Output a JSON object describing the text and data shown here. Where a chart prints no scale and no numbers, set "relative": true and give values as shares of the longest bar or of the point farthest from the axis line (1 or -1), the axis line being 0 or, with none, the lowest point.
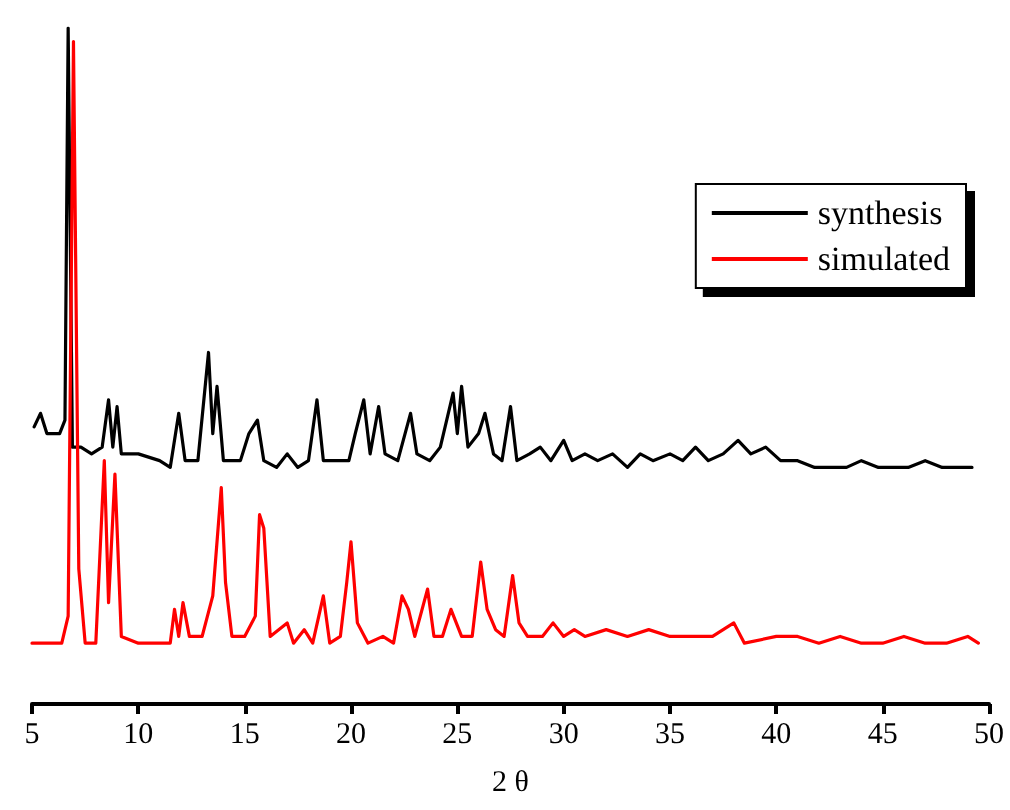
{
  "chart_data": {
    "type": "line",
    "relative": true,
    "xlabel": "2 θ",
    "xlim": [
      5,
      50
    ],
    "xticks": [
      5,
      10,
      15,
      20,
      25,
      30,
      35,
      40,
      45,
      50
    ],
    "tick_labels": "x",
    "grid": false,
    "legend": "top right",
    "marker": "none",
    "line_style": "solid",
    "series": [
      {
        "name": "synthesis",
        "color": "#000000",
        "x": [
          5.1,
          5.4,
          5.7,
          6.3,
          6.55,
          6.7,
          6.9,
          7.3,
          7.8,
          8.3,
          8.6,
          8.8,
          9.0,
          9.2,
          10.0,
          11.0,
          11.5,
          11.9,
          12.2,
          12.8,
          13.3,
          13.5,
          13.7,
          14.0,
          14.8,
          15.2,
          15.6,
          15.9,
          16.5,
          17.0,
          17.5,
          18.0,
          18.4,
          18.7,
          19.3,
          19.9,
          20.2,
          20.6,
          20.9,
          21.3,
          21.6,
          22.2,
          22.8,
          23.1,
          23.7,
          24.2,
          24.8,
          25.0,
          25.2,
          25.5,
          26.0,
          26.3,
          26.7,
          27.1,
          27.5,
          27.8,
          28.4,
          28.9,
          29.4,
          30.0,
          30.4,
          31.0,
          31.6,
          32.3,
          33.0,
          33.6,
          34.2,
          35.0,
          35.6,
          36.2,
          36.8,
          37.5,
          38.2,
          38.8,
          39.5,
          40.2,
          41.0,
          41.8,
          42.5,
          43.3,
          44.0,
          44.8,
          45.5,
          46.2,
          47.0,
          47.8,
          48.5,
          49.2
        ],
        "values": [
          0.41,
          0.43,
          0.4,
          0.4,
          0.42,
          1.0,
          0.38,
          0.38,
          0.37,
          0.38,
          0.45,
          0.38,
          0.44,
          0.37,
          0.37,
          0.36,
          0.35,
          0.43,
          0.36,
          0.36,
          0.52,
          0.4,
          0.47,
          0.36,
          0.36,
          0.4,
          0.42,
          0.36,
          0.35,
          0.37,
          0.35,
          0.36,
          0.45,
          0.36,
          0.36,
          0.36,
          0.4,
          0.45,
          0.37,
          0.44,
          0.37,
          0.36,
          0.43,
          0.37,
          0.36,
          0.38,
          0.46,
          0.4,
          0.47,
          0.38,
          0.4,
          0.43,
          0.37,
          0.36,
          0.44,
          0.36,
          0.37,
          0.38,
          0.36,
          0.39,
          0.36,
          0.37,
          0.36,
          0.37,
          0.35,
          0.37,
          0.36,
          0.37,
          0.36,
          0.38,
          0.36,
          0.37,
          0.39,
          0.37,
          0.38,
          0.36,
          0.36,
          0.35,
          0.35,
          0.35,
          0.36,
          0.35,
          0.35,
          0.35,
          0.36,
          0.35,
          0.35,
          0.35
        ]
      },
      {
        "name": "simulated",
        "color": "#ff0000",
        "x": [
          5.0,
          6.4,
          6.7,
          6.95,
          7.2,
          7.5,
          8.0,
          8.4,
          8.6,
          8.9,
          9.2,
          10.0,
          11.5,
          11.7,
          11.9,
          12.1,
          12.4,
          13.0,
          13.5,
          13.9,
          14.1,
          14.4,
          15.0,
          15.5,
          15.7,
          15.9,
          16.2,
          17.0,
          17.3,
          17.8,
          18.2,
          18.7,
          19.0,
          19.5,
          19.8,
          20.0,
          20.3,
          20.8,
          21.5,
          22.0,
          22.4,
          22.7,
          23.0,
          23.6,
          23.9,
          24.3,
          24.7,
          25.2,
          25.7,
          26.1,
          26.4,
          26.8,
          27.2,
          27.6,
          27.9,
          28.3,
          29.0,
          29.5,
          30.0,
          30.5,
          31.0,
          32.0,
          33.0,
          34.0,
          35.0,
          36.0,
          37.0,
          38.0,
          38.5,
          40.0,
          41.0,
          42.0,
          43.0,
          44.0,
          45.0,
          46.0,
          47.0,
          48.0,
          49.0,
          49.5
        ],
        "values": [
          0.09,
          0.09,
          0.13,
          0.98,
          0.2,
          0.09,
          0.09,
          0.36,
          0.15,
          0.34,
          0.1,
          0.09,
          0.09,
          0.14,
          0.1,
          0.15,
          0.1,
          0.1,
          0.16,
          0.32,
          0.18,
          0.1,
          0.1,
          0.13,
          0.28,
          0.26,
          0.1,
          0.12,
          0.09,
          0.11,
          0.09,
          0.16,
          0.09,
          0.1,
          0.18,
          0.24,
          0.12,
          0.09,
          0.1,
          0.09,
          0.16,
          0.14,
          0.1,
          0.17,
          0.1,
          0.1,
          0.14,
          0.1,
          0.1,
          0.21,
          0.14,
          0.11,
          0.1,
          0.19,
          0.12,
          0.1,
          0.1,
          0.12,
          0.1,
          0.11,
          0.1,
          0.11,
          0.1,
          0.11,
          0.1,
          0.1,
          0.1,
          0.12,
          0.09,
          0.1,
          0.1,
          0.09,
          0.1,
          0.09,
          0.09,
          0.1,
          0.09,
          0.09,
          0.1,
          0.09
        ]
      }
    ]
  }
}
